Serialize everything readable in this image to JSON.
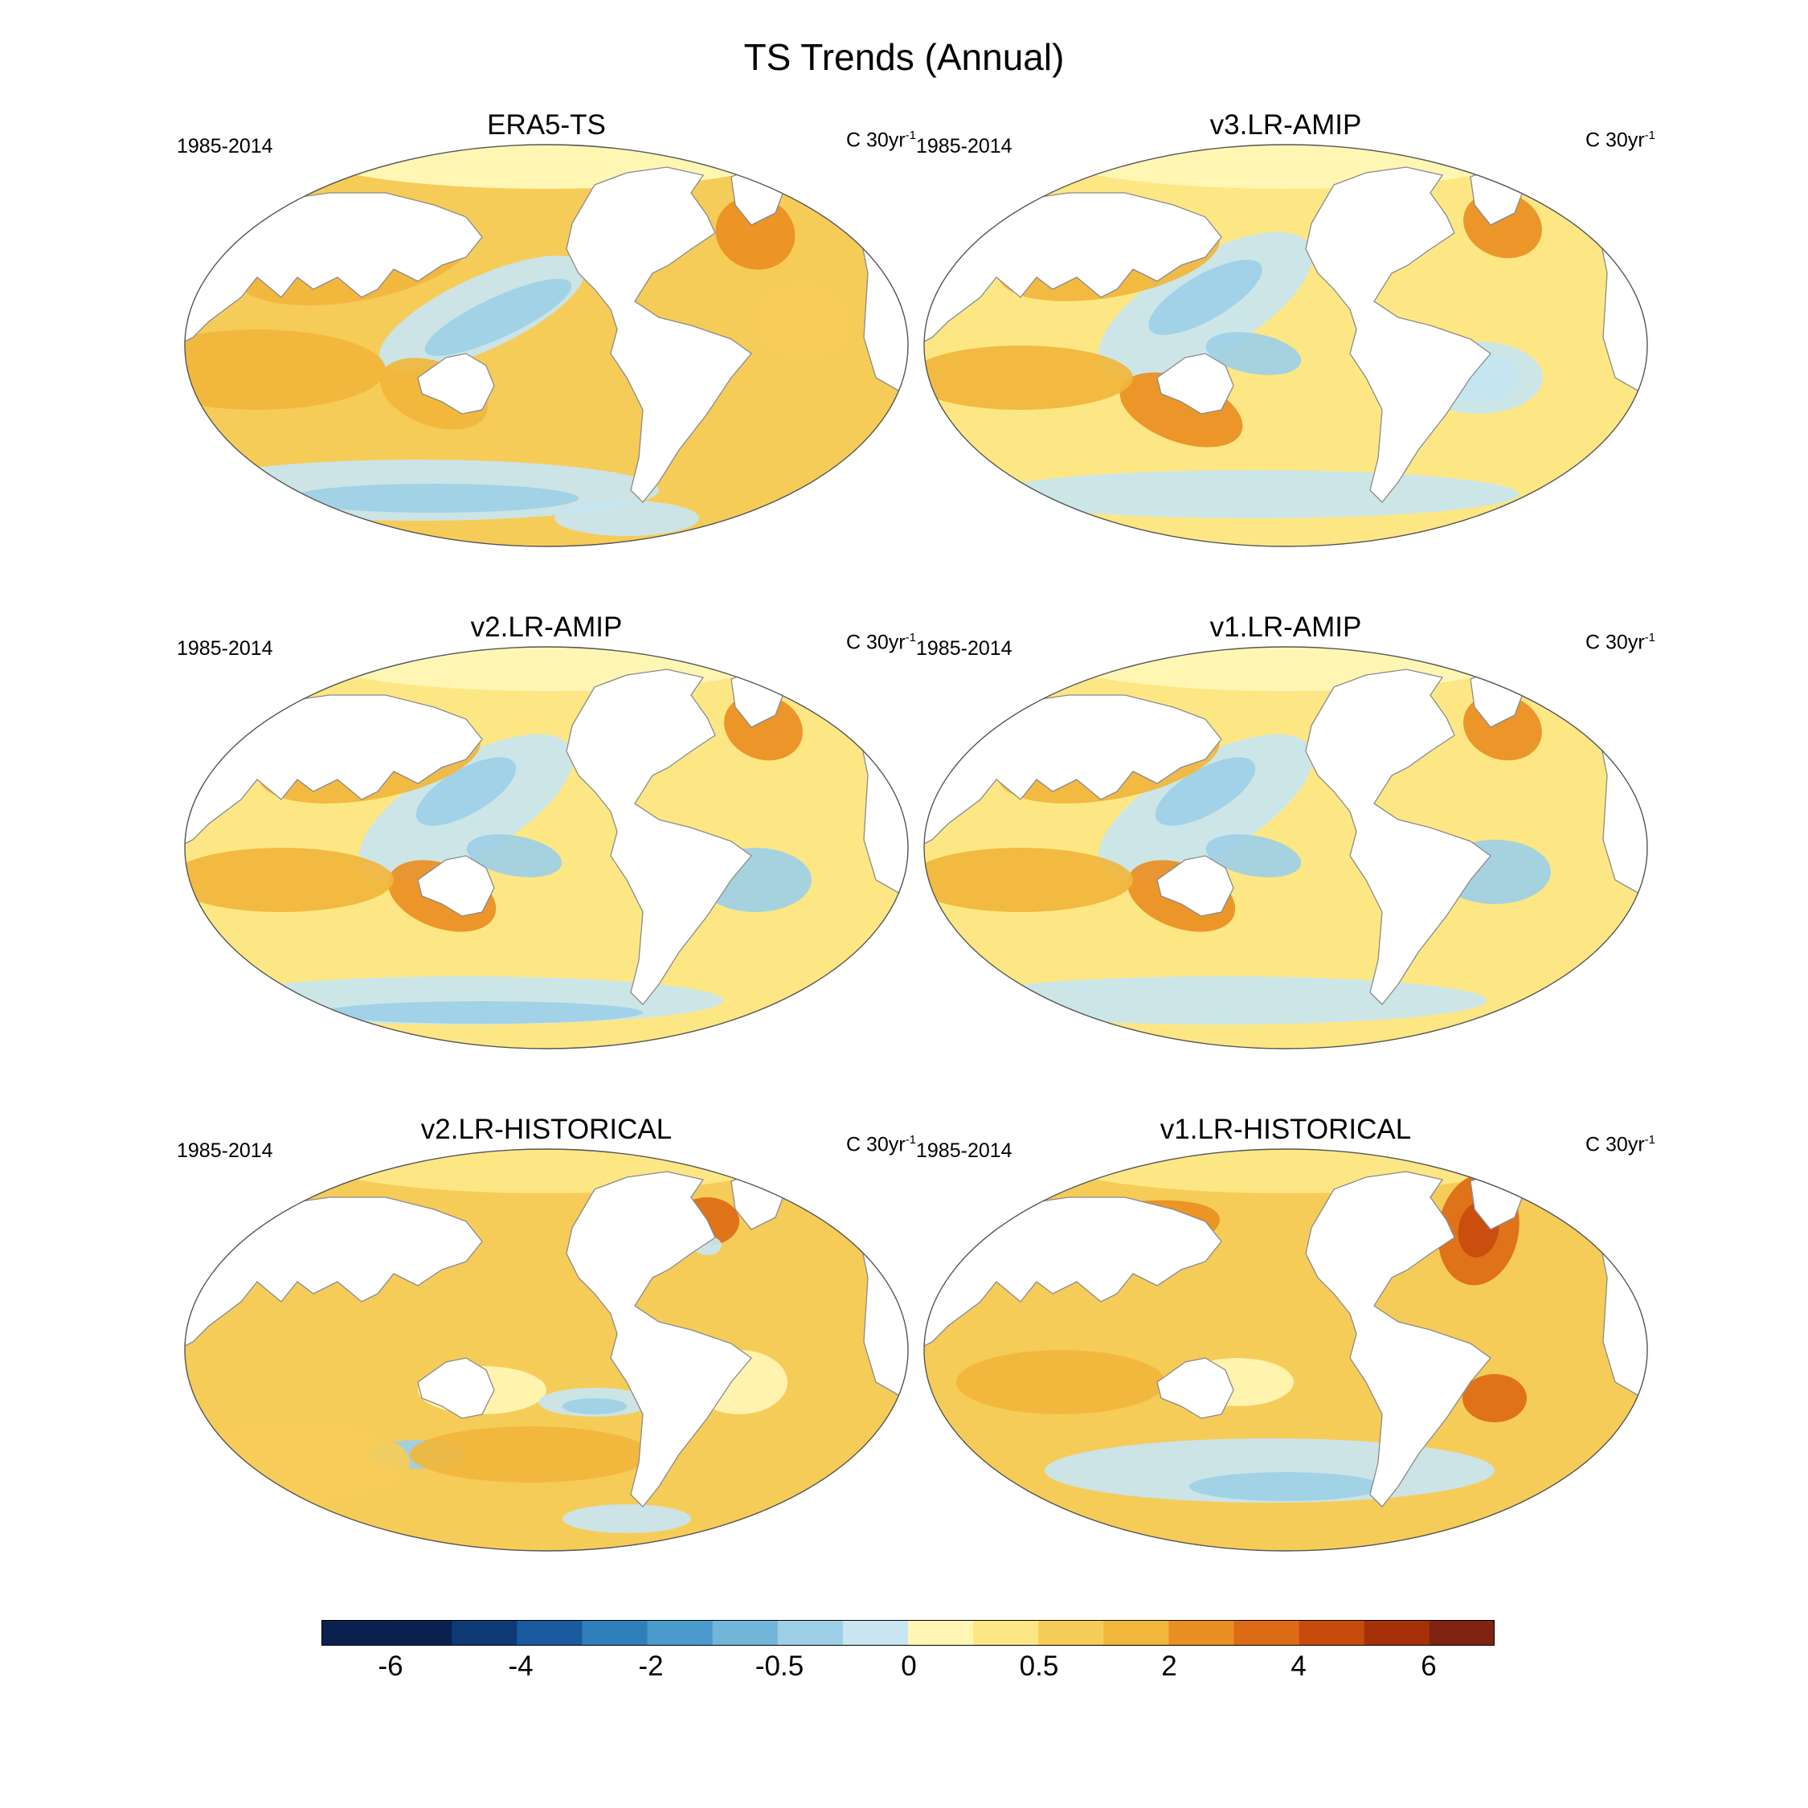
{
  "title": "TS Trends (Annual)",
  "colors": {
    "levels": [
      "#08214f",
      "#0e3a76",
      "#1a5a9e",
      "#2f7fba",
      "#4a9bcc",
      "#71b6d9",
      "#9dd0e6",
      "#c8e6f1",
      "#fff6b4",
      "#fde784",
      "#f6cc58",
      "#f1b63c",
      "#ea8f22",
      "#dd6a14",
      "#c84b0c",
      "#a63108",
      "#7f2313"
    ],
    "coast": "#8a8a8a",
    "land": "#ffffff"
  },
  "panels": [
    {
      "title": "ERA5-TS",
      "period": "1985-2014",
      "units_base": "C 30yr",
      "units_exp": "-1"
    },
    {
      "title": "v3.LR-AMIP",
      "period": "1985-2014",
      "units_base": "C 30yr",
      "units_exp": "-1"
    },
    {
      "title": "v2.LR-AMIP",
      "period": "1985-2014",
      "units_base": "C 30yr",
      "units_exp": "-1"
    },
    {
      "title": "v1.LR-AMIP",
      "period": "1985-2014",
      "units_base": "C 30yr",
      "units_exp": "-1"
    },
    {
      "title": "v2.LR-HISTORICAL",
      "period": "1985-2014",
      "units_base": "C 30yr",
      "units_exp": "-1"
    },
    {
      "title": "v1.LR-HISTORICAL",
      "period": "1985-2014",
      "units_base": "C 30yr",
      "units_exp": "-1"
    }
  ],
  "colorbar": {
    "labels": [
      "-6",
      "-4",
      "-2",
      "-0.5",
      "0",
      "0.5",
      "2",
      "4",
      "6"
    ]
  }
}
